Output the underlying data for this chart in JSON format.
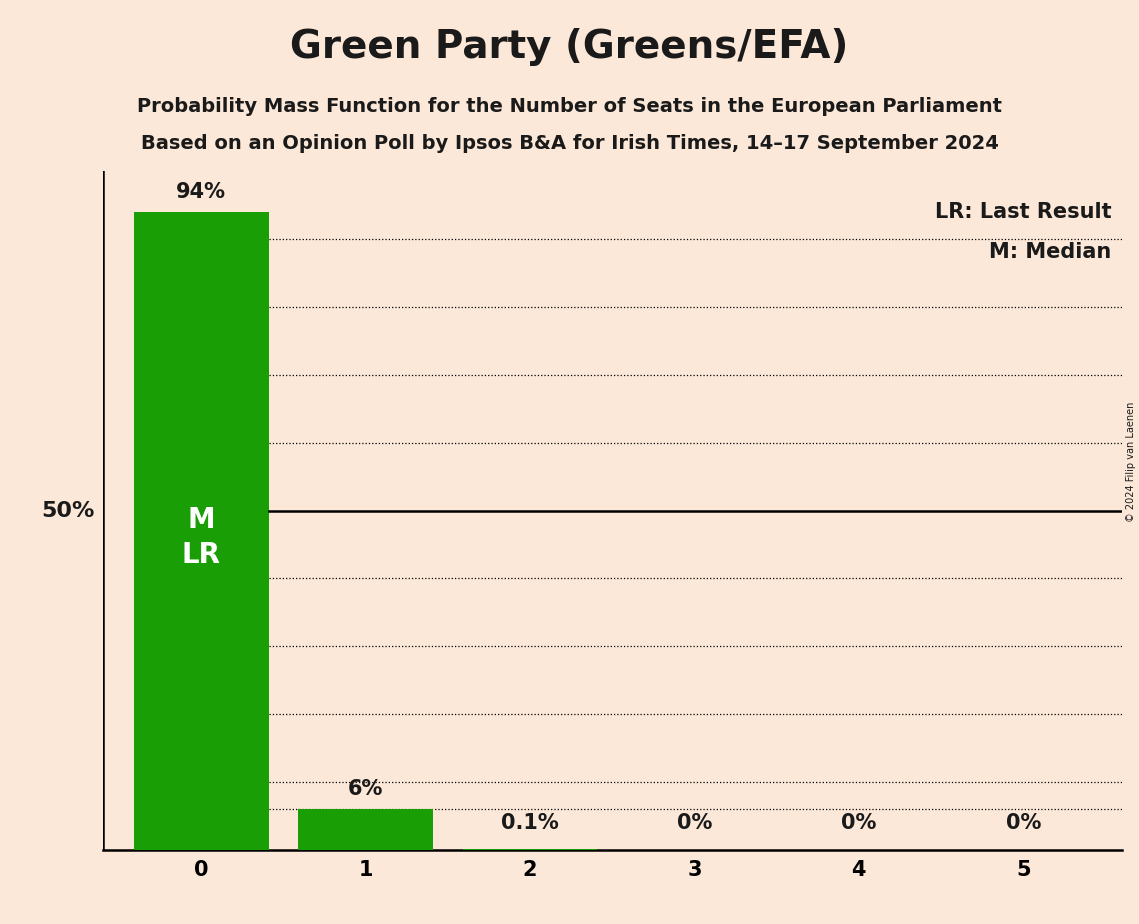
{
  "title": "Green Party (Greens/EFA)",
  "subtitle1": "Probability Mass Function for the Number of Seats in the European Parliament",
  "subtitle2": "Based on an Opinion Poll by Ipsos B&A for Irish Times, 14–17 September 2024",
  "copyright": "© 2024 Filip van Laenen",
  "categories": [
    0,
    1,
    2,
    3,
    4,
    5
  ],
  "values": [
    94,
    6,
    0.1,
    0,
    0,
    0
  ],
  "bar_labels": [
    "94%",
    "6%",
    "0.1%",
    "0%",
    "0%",
    "0%"
  ],
  "bar_color": "#1a9e06",
  "background_color": "#fce8d8",
  "text_color": "#1a1a1a",
  "ylabel_50": "50%",
  "legend_lr": "LR: Last Result",
  "legend_m": "M: Median",
  "ylim": [
    0,
    100
  ],
  "title_fontsize": 28,
  "subtitle_fontsize": 14,
  "label_fontsize": 15,
  "tick_fontsize": 15,
  "bar_label_inside_color": "#ffffff",
  "bar_label_outside_color": "#1a1a1a",
  "ml_fontsize": 20
}
